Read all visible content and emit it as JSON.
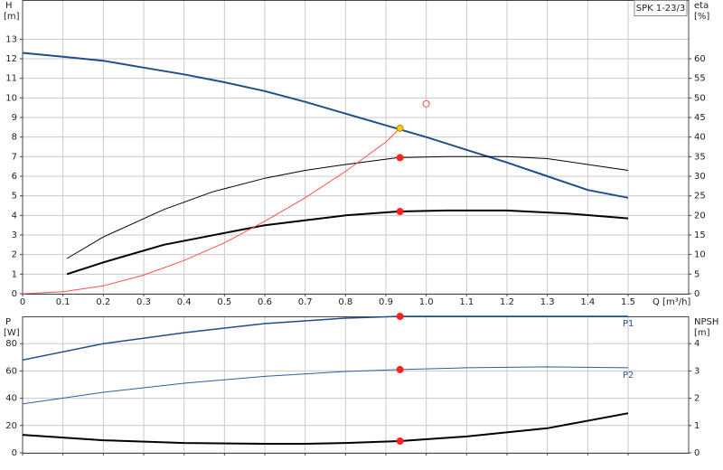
{
  "chart_data": [
    {
      "type": "line",
      "title": "SPK 1-23/3",
      "ylabel": "H",
      "yunit": "[m]",
      "y2label": "eta",
      "y2unit": "[%]",
      "xlabel": "Q [m³/h]",
      "xlim": [
        0,
        1.65
      ],
      "ylim": [
        0,
        15
      ],
      "y2lim": [
        0,
        75
      ],
      "grid": true,
      "xticks": [
        0,
        0.1,
        0.2,
        0.3,
        0.4,
        0.5,
        0.6,
        0.7,
        0.8,
        0.9,
        {
          "value": 1,
          "label": "1.0"
        },
        1.1,
        1.2,
        1.3,
        1.4,
        1.5
      ],
      "yticks": [
        0,
        1,
        2,
        3,
        4,
        5,
        6,
        7,
        8,
        9,
        10,
        11,
        12,
        13
      ],
      "y2ticks": [
        0,
        5,
        10,
        15,
        20,
        25,
        30,
        35,
        40,
        45,
        50,
        55,
        60
      ],
      "series": [
        {
          "color": "#1f4e8c",
          "width": 2,
          "x": [
            0,
            0.1,
            0.2,
            0.3,
            0.4,
            0.5,
            0.6,
            0.7,
            0.8,
            0.9,
            1.0,
            1.1,
            1.2,
            1.3,
            1.4,
            1.5
          ],
          "values": [
            12.3,
            12.1,
            11.9,
            11.55,
            11.2,
            10.8,
            10.35,
            9.8,
            9.2,
            8.6,
            8.0,
            7.35,
            6.7,
            6.0,
            5.3,
            4.9
          ]
        },
        {
          "color": "#000000",
          "width": 1,
          "axis": "y2",
          "x": [
            0.11,
            0.2,
            0.35,
            0.47,
            0.6,
            0.7,
            0.8,
            0.93,
            1.05,
            1.2,
            1.3,
            1.4,
            1.5
          ],
          "values": [
            9,
            14.5,
            21.5,
            26,
            29.5,
            31.5,
            33,
            34.75,
            35,
            35,
            34.5,
            33,
            31.5
          ]
        },
        {
          "color": "#000000",
          "width": 2,
          "axis": "y2",
          "x": [
            0.11,
            0.2,
            0.35,
            0.5,
            0.6,
            0.7,
            0.8,
            0.93,
            1.05,
            1.2,
            1.35,
            1.5
          ],
          "values": [
            5,
            8,
            12.5,
            15.5,
            17.5,
            18.75,
            20,
            21,
            21.25,
            21.25,
            20.5,
            19.25
          ]
        },
        {
          "color": "#ff4d4d",
          "width": 1,
          "x": [
            0,
            0.1,
            0.2,
            0.3,
            0.4,
            0.5,
            0.6,
            0.7,
            0.8,
            0.9,
            0.935
          ],
          "values": [
            0,
            0.1,
            0.4,
            0.95,
            1.7,
            2.6,
            3.7,
            4.9,
            6.25,
            7.75,
            8.45
          ]
        }
      ],
      "markers": [
        {
          "x": 0.935,
          "y": 8.45,
          "color": "#ffcc00",
          "style": "filled"
        },
        {
          "x": 1.0,
          "y": 9.7,
          "color": "#ff4d4d",
          "style": "hollow"
        },
        {
          "x": 0.935,
          "y": 34.75,
          "axis": "y2",
          "color": "#ff2222",
          "style": "filled"
        },
        {
          "x": 0.935,
          "y": 21,
          "axis": "y2",
          "color": "#ff2222",
          "style": "filled"
        }
      ]
    },
    {
      "type": "line",
      "ylabel": "P",
      "yunit": "[W]",
      "y2label": "NPSH",
      "y2unit": "[m]",
      "xlim": [
        0,
        1.65
      ],
      "ylim": [
        0,
        100
      ],
      "y2lim": [
        0,
        5
      ],
      "grid": true,
      "xticks": [
        0,
        0.1,
        0.2,
        0.3,
        0.4,
        0.5,
        0.6,
        0.7,
        0.8,
        0.9,
        1.0,
        1.1,
        1.2,
        1.3,
        1.4,
        1.5
      ],
      "yticks": [
        0,
        20,
        40,
        60,
        80
      ],
      "y2ticks": [
        0,
        1,
        2,
        3,
        4
      ],
      "series": [
        {
          "name": "P1",
          "color": "#1f4e8c",
          "width": 1.5,
          "x": [
            0,
            0.2,
            0.4,
            0.6,
            0.8,
            0.935,
            1.2,
            1.5
          ],
          "values": [
            68,
            80,
            88,
            94.7,
            98.7,
            100,
            100,
            100
          ]
        },
        {
          "name": "P2",
          "color": "#2f5f9f",
          "width": 1,
          "x": [
            0,
            0.2,
            0.4,
            0.6,
            0.8,
            0.935,
            1.1,
            1.3,
            1.5
          ],
          "values": [
            35.8,
            44.4,
            51,
            56,
            59.6,
            61,
            62.3,
            63,
            62.3
          ]
        },
        {
          "color": "#000000",
          "width": 2,
          "axis": "y2",
          "x": [
            0,
            0.2,
            0.4,
            0.6,
            0.7,
            0.8,
            0.935,
            1.1,
            1.3,
            1.5
          ],
          "values": [
            0.66,
            0.46,
            0.36,
            0.33,
            0.33,
            0.36,
            0.43,
            0.6,
            0.9,
            1.45
          ]
        }
      ],
      "markers": [
        {
          "x": 0.935,
          "y": 100,
          "color": "#ff2222",
          "style": "filled"
        },
        {
          "x": 0.935,
          "y": 61,
          "color": "#ff2222",
          "style": "filled"
        },
        {
          "x": 0.935,
          "y": 0.43,
          "axis": "y2",
          "color": "#ff2222",
          "style": "filled"
        }
      ]
    }
  ]
}
